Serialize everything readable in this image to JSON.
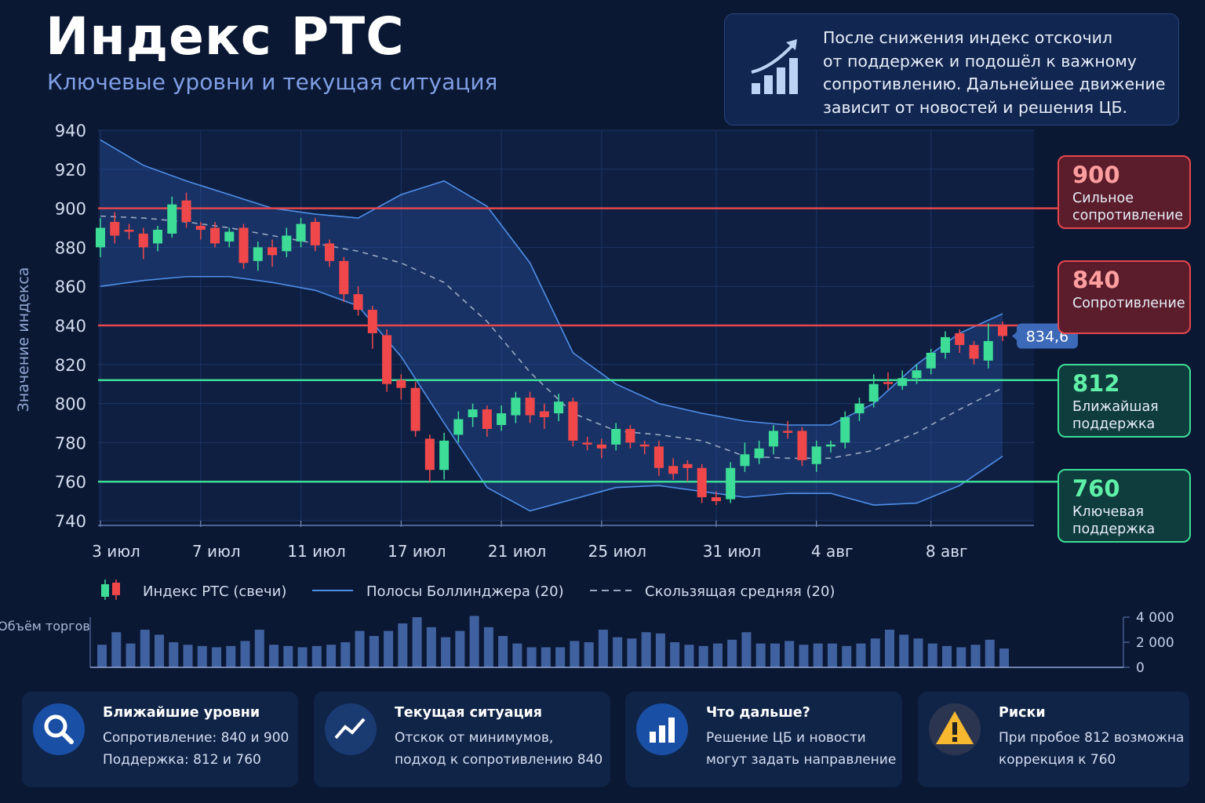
{
  "header": {
    "title": "Индекс РТС",
    "subtitle": "Ключевые уровни и текущая ситуация"
  },
  "callout": {
    "lines": [
      "После снижения индекс отскочил",
      "от поддержек и подошёл к важному",
      "сопротивлению. Дальнейшее движение",
      "зависит от новостей и решения ЦБ."
    ]
  },
  "chart_data": {
    "type": "candlestick",
    "y_label": "Значение индекса",
    "categories": [
      "3 июл",
      null,
      null,
      null,
      null,
      null,
      null,
      "7 июл",
      null,
      null,
      null,
      null,
      null,
      null,
      "11 июл",
      null,
      null,
      null,
      null,
      null,
      null,
      "17 июл",
      null,
      null,
      null,
      null,
      null,
      null,
      "21 июл",
      null,
      null,
      null,
      null,
      null,
      null,
      "25 июл",
      null,
      null,
      null,
      null,
      null,
      null,
      null,
      "31 июл",
      null,
      null,
      null,
      null,
      null,
      null,
      "4 авг",
      null,
      null,
      null,
      null,
      null,
      null,
      null,
      "8 авг",
      null,
      null,
      null,
      null,
      null
    ],
    "open": [
      880,
      893,
      889,
      887,
      882,
      887,
      904,
      891,
      890,
      883,
      890,
      873,
      880,
      878,
      883,
      893,
      882,
      873,
      856,
      848,
      835,
      812,
      808,
      782,
      766,
      784,
      793,
      797,
      789,
      794,
      803,
      796,
      795,
      801,
      780,
      779,
      779,
      787,
      779,
      778,
      768,
      769,
      767,
      752,
      751,
      768,
      772,
      778,
      786,
      786,
      769,
      778,
      780,
      795,
      801,
      811,
      809,
      813,
      818,
      826,
      836,
      830,
      822,
      840
    ],
    "high": [
      895,
      898,
      892,
      890,
      891,
      906,
      908,
      893,
      893,
      890,
      892,
      883,
      884,
      890,
      895,
      895,
      884,
      875,
      860,
      850,
      838,
      815,
      811,
      784,
      785,
      796,
      800,
      799,
      799,
      806,
      806,
      800,
      805,
      803,
      783,
      782,
      790,
      789,
      781,
      781,
      772,
      771,
      769,
      755,
      770,
      780,
      781,
      789,
      791,
      788,
      781,
      781,
      796,
      803,
      815,
      816,
      817,
      820,
      828,
      837,
      838,
      832,
      841,
      842
    ],
    "low": [
      875,
      882,
      884,
      874,
      878,
      885,
      890,
      884,
      880,
      880,
      869,
      868,
      870,
      875,
      880,
      878,
      870,
      852,
      845,
      828,
      806,
      802,
      783,
      760,
      761,
      780,
      788,
      783,
      786,
      790,
      790,
      787,
      791,
      778,
      776,
      772,
      776,
      777,
      774,
      763,
      761,
      760,
      749,
      748,
      749,
      765,
      769,
      774,
      782,
      768,
      765,
      775,
      777,
      791,
      798,
      807,
      807,
      810,
      815,
      823,
      826,
      820,
      818,
      832
    ],
    "close": [
      890,
      886,
      888,
      880,
      889,
      902,
      893,
      889,
      882,
      888,
      872,
      880,
      876,
      886,
      892,
      881,
      873,
      856,
      848,
      836,
      810,
      808,
      786,
      766,
      781,
      792,
      797,
      787,
      795,
      803,
      794,
      793,
      801,
      781,
      779,
      777,
      787,
      780,
      778,
      767,
      764,
      767,
      752,
      750,
      767,
      774,
      777,
      786,
      785,
      771,
      778,
      779,
      793,
      800,
      810,
      810,
      813,
      817,
      826,
      834,
      830,
      823,
      832,
      834.6
    ],
    "colors": {
      "up": "#3ddc97",
      "down": "#f0484a"
    },
    "candle_legend": "Индекс РТС (свечи)",
    "ylim": [
      740,
      940
    ],
    "yticks": [
      740,
      760,
      780,
      800,
      820,
      840,
      860,
      880,
      900,
      920,
      940
    ],
    "grid": true,
    "last_price": {
      "value": 834.6,
      "label": "834,6"
    },
    "bands": {
      "name": "Полосы Боллинджера (20)",
      "color": "#4f8fe8",
      "x": [
        0,
        3,
        6,
        9,
        12,
        15,
        18,
        21,
        24,
        27,
        30,
        33,
        36,
        39,
        42,
        45,
        48,
        51,
        54,
        57,
        60,
        63
      ],
      "upper": [
        935,
        922,
        914,
        907,
        900,
        897,
        895,
        907,
        914,
        901,
        872,
        826,
        810,
        800,
        795,
        791,
        789,
        789,
        800,
        820,
        836,
        846
      ],
      "lower": [
        860,
        863,
        865,
        865,
        862,
        858,
        850,
        824,
        790,
        757,
        745,
        751,
        757,
        758,
        755,
        752,
        754,
        754,
        748,
        749,
        758,
        773
      ]
    },
    "moving_average": {
      "name": "Скользящая средняя (20)",
      "color": "#9aa8c0",
      "x": [
        0,
        3,
        6,
        9,
        12,
        15,
        18,
        21,
        24,
        27,
        30,
        33,
        36,
        39,
        42,
        45,
        48,
        51,
        54,
        57,
        60,
        63
      ],
      "values": [
        896,
        895,
        893,
        890,
        886,
        882,
        878,
        872,
        862,
        842,
        816,
        795,
        786,
        784,
        781,
        773,
        772,
        772,
        776,
        785,
        797,
        808
      ]
    },
    "levels": [
      {
        "value": 900,
        "label": "Сильное сопротивление",
        "color": "#e5474c"
      },
      {
        "value": 840,
        "label": "Сопротивление",
        "color": "#e5474c"
      },
      {
        "value": 812,
        "label": "Ближайшая поддержка",
        "color": "#3ddc97"
      },
      {
        "value": 760,
        "label": "Ключевая поддержка",
        "color": "#3ddc97"
      }
    ],
    "volume": {
      "label": "Объём торгов",
      "color": "#4a6fb3",
      "values": [
        1800,
        2800,
        1900,
        3000,
        2600,
        2000,
        1800,
        1700,
        1600,
        1700,
        2100,
        3000,
        1800,
        1700,
        1600,
        1700,
        1800,
        2000,
        2900,
        2500,
        2900,
        3500,
        4000,
        3200,
        2400,
        2900,
        4100,
        3200,
        2500,
        1900,
        1600,
        1600,
        1600,
        2100,
        2000,
        3000,
        2400,
        2300,
        2800,
        2700,
        2000,
        1800,
        1700,
        1900,
        2200,
        2800,
        1900,
        1900,
        2100,
        1800,
        1900,
        1900,
        1700,
        1900,
        2300,
        3000,
        2600,
        2300,
        1900,
        1700,
        1600,
        1800,
        2200,
        1500
      ],
      "ylim": [
        0,
        4000
      ],
      "yticks": [
        0,
        {
          "value": 2000,
          "label": "2 000"
        },
        {
          "value": 4000,
          "label": "4 000"
        }
      ]
    }
  },
  "cards": [
    {
      "title": "Ближайшие уровни",
      "lines": [
        "Сопротивление: 840 и 900",
        "Поддержка: 812 и 760"
      ]
    },
    {
      "title": "Текущая ситуация",
      "lines": [
        "Отскок от минимумов,",
        "подход к сопротивлению 840"
      ]
    },
    {
      "title": "Что дальше?",
      "lines": [
        "Решение ЦБ и новости",
        "могут задать направление"
      ]
    },
    {
      "title": "Риски",
      "lines": [
        "При пробое 812 возможна",
        "коррекция к 760"
      ]
    }
  ]
}
